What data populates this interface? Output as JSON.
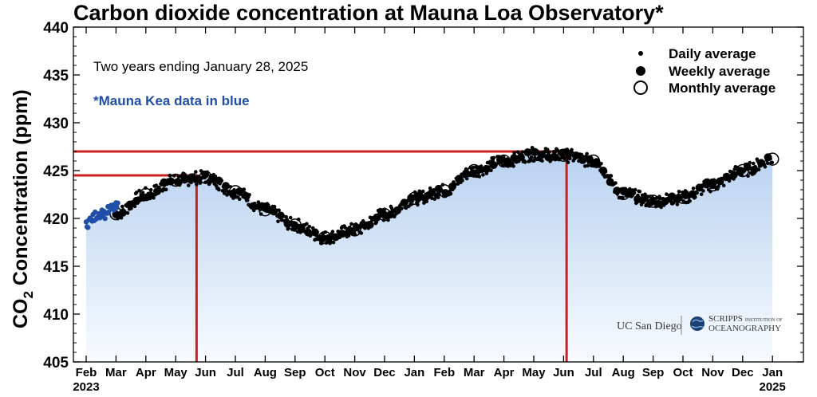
{
  "chart_data": {
    "type": "scatter",
    "title": "Carbon dioxide concentration at Mauna Loa Observatory*",
    "subtitle": "Two years ending January 28, 2025",
    "note": "*Mauna Kea data in blue",
    "ylabel": {
      "main": "CO",
      "sub": "2",
      "rest": " Concentration (ppm)"
    },
    "ylim": [
      405,
      440
    ],
    "yticks": [
      405,
      410,
      415,
      420,
      425,
      430,
      435,
      440
    ],
    "x_months": [
      "Feb",
      "Mar",
      "Apr",
      "May",
      "Jun",
      "Jul",
      "Aug",
      "Sep",
      "Oct",
      "Nov",
      "Dec",
      "Jan",
      "Feb",
      "Mar",
      "Apr",
      "May",
      "Jun",
      "Jul",
      "Aug",
      "Sep",
      "Oct",
      "Nov",
      "Dec",
      "Jan"
    ],
    "x_years": [
      {
        "label": "2023",
        "month_index": 0
      },
      {
        "label": "2025",
        "month_index": 23
      }
    ],
    "legend": {
      "position": "top-right",
      "items": [
        {
          "label": "Daily average",
          "marker": "small-dot"
        },
        {
          "label": "Weekly average",
          "marker": "large-dot"
        },
        {
          "label": "Monthly average",
          "marker": "open-circle"
        }
      ]
    },
    "peaks": [
      {
        "month": "May 2023",
        "value": 424.5
      },
      {
        "month": "May 2024",
        "value": 427.0
      }
    ],
    "mauna_kea_daily": {
      "x": [
        0.0,
        0.1,
        0.2,
        0.3,
        0.4,
        0.5,
        0.6,
        0.7,
        0.8,
        0.9,
        1.0
      ],
      "y": [
        419.5,
        419.8,
        420.0,
        420.3,
        420.5,
        420.7,
        420.4,
        420.8,
        421.0,
        421.1,
        421.2
      ]
    },
    "monthly_average": {
      "x": [
        0.0,
        1.0,
        2.0,
        3.0,
        4.0,
        5.0,
        6.0,
        7.0,
        8.0,
        9.0,
        10.0,
        11.0,
        12.0,
        13.0,
        14.0,
        15.0,
        16.0,
        17.0,
        18.0,
        19.0,
        20.0,
        21.0,
        22.0,
        23.0
      ],
      "y": [
        420.0,
        420.5,
        422.5,
        424.0,
        424.3,
        422.8,
        420.9,
        419.3,
        418.0,
        418.8,
        420.4,
        422.1,
        422.9,
        425.0,
        426.0,
        426.7,
        426.6,
        426.0,
        422.6,
        421.8,
        422.2,
        423.5,
        425.0,
        426.2
      ]
    },
    "colors": {
      "plot_fill_top": "#b9d2f0",
      "plot_fill_bottom": "#f8fbff",
      "data_points": "#000000",
      "mauna_kea": "#1f4fa8",
      "peak_lines": "#cc1f1f"
    },
    "logos": {
      "ucsd": "UC San Diego",
      "scripps_line1": "SCRIPPS",
      "scripps_small": "INSTITUTION OF",
      "scripps_line2": "OCEANOGRAPHY"
    }
  }
}
